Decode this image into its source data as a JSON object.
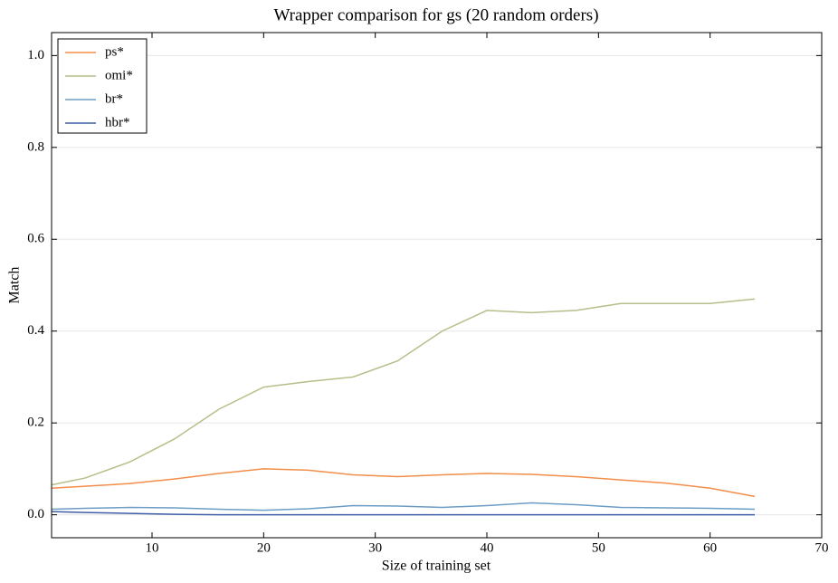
{
  "chart_data": {
    "type": "line",
    "title": "Wrapper comparison for gs (20 random orders)",
    "x_label": "Size of training set",
    "y_label": "Match",
    "x": [
      1,
      4,
      8,
      12,
      16,
      20,
      24,
      28,
      32,
      36,
      40,
      44,
      48,
      52,
      56,
      60,
      64
    ],
    "series": [
      {
        "name": "ps*",
        "color": "#f28e4a",
        "values": [
          0.058,
          0.062,
          0.068,
          0.078,
          0.09,
          0.1,
          0.097,
          0.087,
          0.083,
          0.087,
          0.09,
          0.088,
          0.083,
          0.076,
          0.069,
          0.058,
          0.04
        ]
      },
      {
        "name": "omi*",
        "color": "#b5bf8b",
        "values": [
          0.065,
          0.08,
          0.115,
          0.165,
          0.23,
          0.278,
          0.29,
          0.3,
          0.335,
          0.4,
          0.445,
          0.44,
          0.445,
          0.46,
          0.46,
          0.46,
          0.47
        ]
      },
      {
        "name": "br*",
        "color": "#6c9dc6",
        "values": [
          0.012,
          0.014,
          0.016,
          0.015,
          0.012,
          0.01,
          0.013,
          0.02,
          0.019,
          0.016,
          0.02,
          0.026,
          0.022,
          0.016,
          0.015,
          0.014,
          0.012
        ]
      },
      {
        "name": "hbr*",
        "color": "#3e5fa8",
        "values": [
          0.007,
          0.005,
          0.003,
          0.001,
          0,
          0,
          0,
          0,
          0,
          0,
          0,
          0,
          0,
          0,
          0,
          0,
          0
        ]
      }
    ],
    "xlim": [
      1,
      70
    ],
    "xticks": [
      10,
      20,
      30,
      40,
      50,
      60,
      70
    ],
    "ylim": [
      -0.05,
      1.05
    ],
    "yticks": [
      {
        "value": 0,
        "label": "0.0"
      },
      0.2,
      0.4,
      0.6,
      0.8,
      {
        "value": 1,
        "label": "1.0"
      }
    ],
    "grid": true,
    "legend": "upper-left"
  }
}
